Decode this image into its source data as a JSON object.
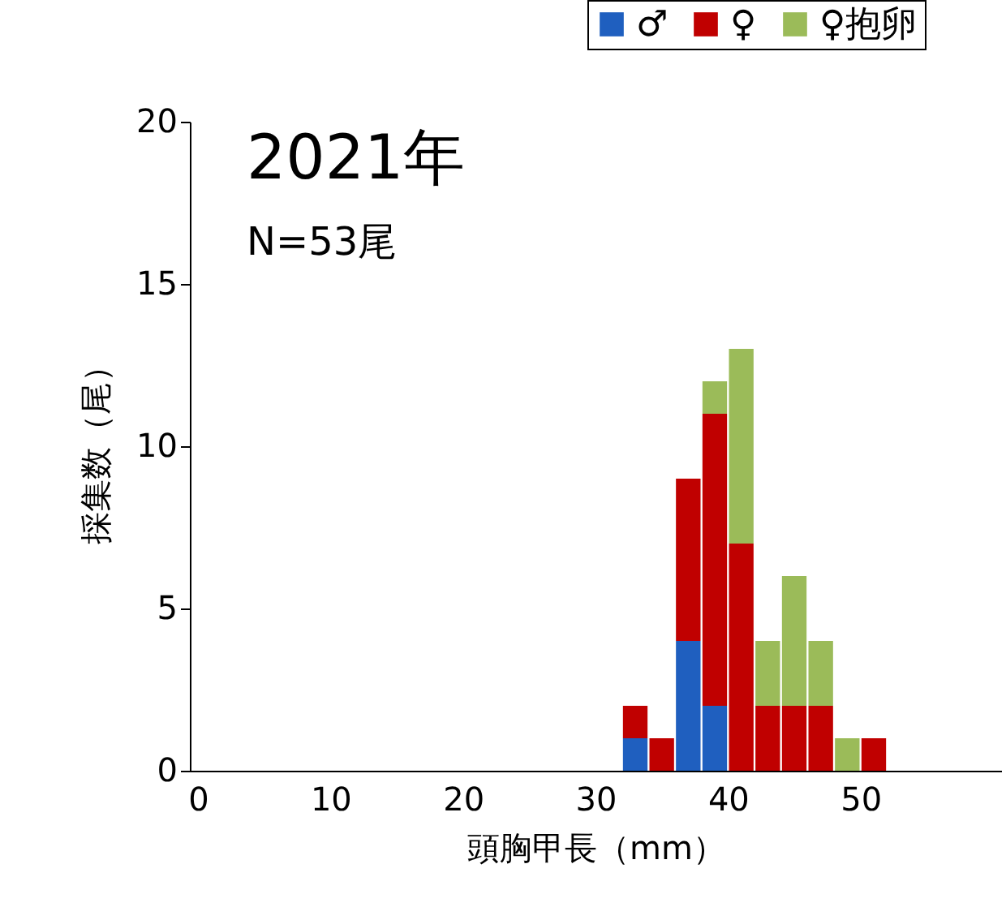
{
  "chart_data": {
    "type": "bar",
    "stacked": true,
    "xlabel": "頭胸甲長（mm）",
    "ylabel": "採集数（尾）",
    "annotations": [
      "2021年",
      "N=53尾"
    ],
    "x": [
      33,
      35,
      37,
      39,
      41,
      43,
      45,
      47,
      49,
      51
    ],
    "series": [
      {
        "name": "♂",
        "color": "#1f5fbf",
        "values": [
          1,
          null,
          4,
          2,
          null,
          null,
          null,
          null,
          null,
          null
        ]
      },
      {
        "name": "♀",
        "color": "#c00000",
        "values": [
          1,
          1,
          5,
          9,
          7,
          2,
          2,
          2,
          null,
          1
        ]
      },
      {
        "name": "♀抱卵",
        "color": "#9bbb59",
        "values": [
          null,
          null,
          null,
          1,
          6,
          2,
          4,
          2,
          1,
          null
        ]
      }
    ],
    "xlim": [
      0,
      60
    ],
    "xticks": [
      0,
      10,
      20,
      30,
      40,
      50
    ],
    "ylim": [
      0,
      20
    ],
    "yticks": [
      0,
      5,
      10,
      15,
      20
    ],
    "grid": false,
    "legend": "top right"
  }
}
